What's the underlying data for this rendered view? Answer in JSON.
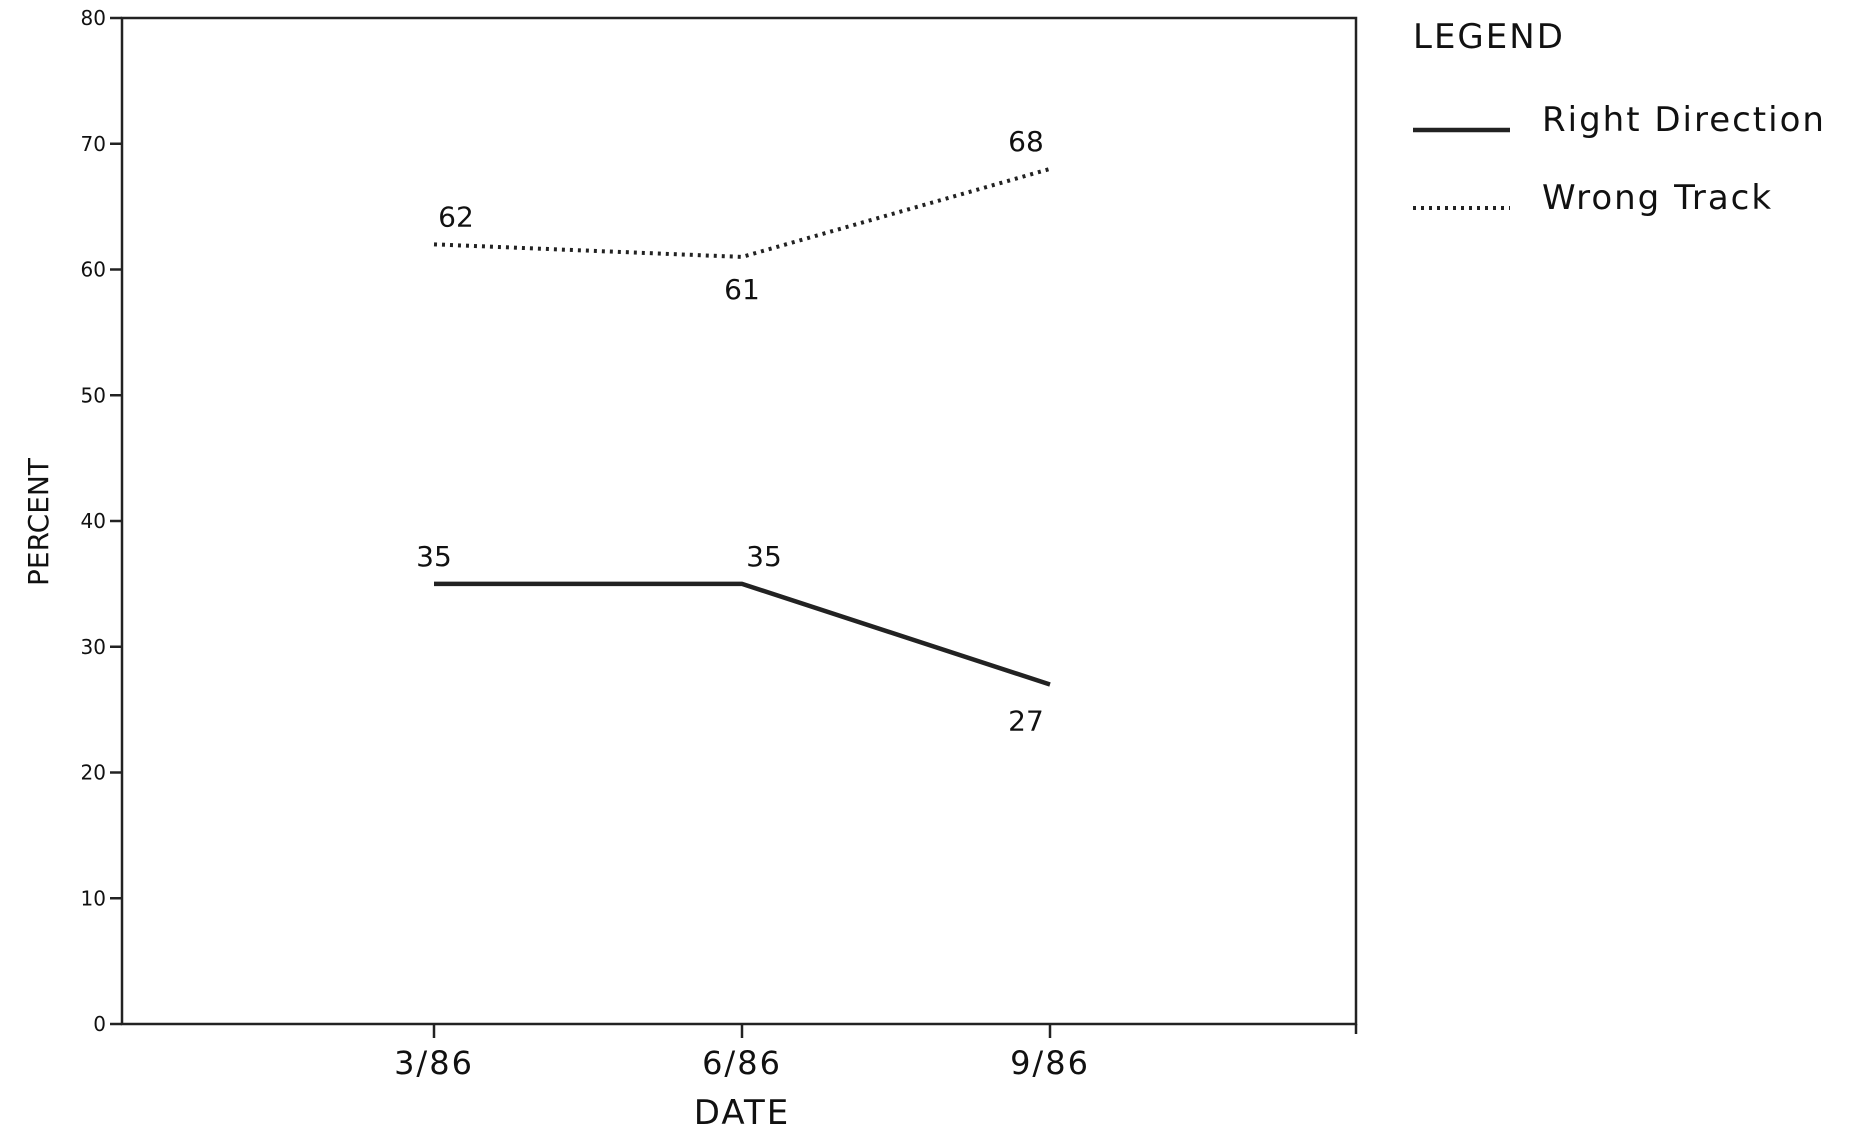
{
  "chart_data": {
    "type": "line",
    "categories": [
      "3/86",
      "6/86",
      "9/86"
    ],
    "xlabel": "DATE",
    "ylabel": "PERCENT",
    "ylim": [
      0,
      80
    ],
    "yticks": [
      0,
      10,
      20,
      30,
      40,
      50,
      60,
      70,
      80
    ],
    "grid": false,
    "legend_position": "right",
    "legend_title": "LEGEND",
    "series": [
      {
        "name": "Right Direction",
        "values": [
          35,
          35,
          27
        ],
        "style": "solid",
        "color": "#222222"
      },
      {
        "name": "Wrong Track",
        "values": [
          62,
          61,
          68
        ],
        "style": "dotted",
        "color": "#222222"
      }
    ]
  }
}
